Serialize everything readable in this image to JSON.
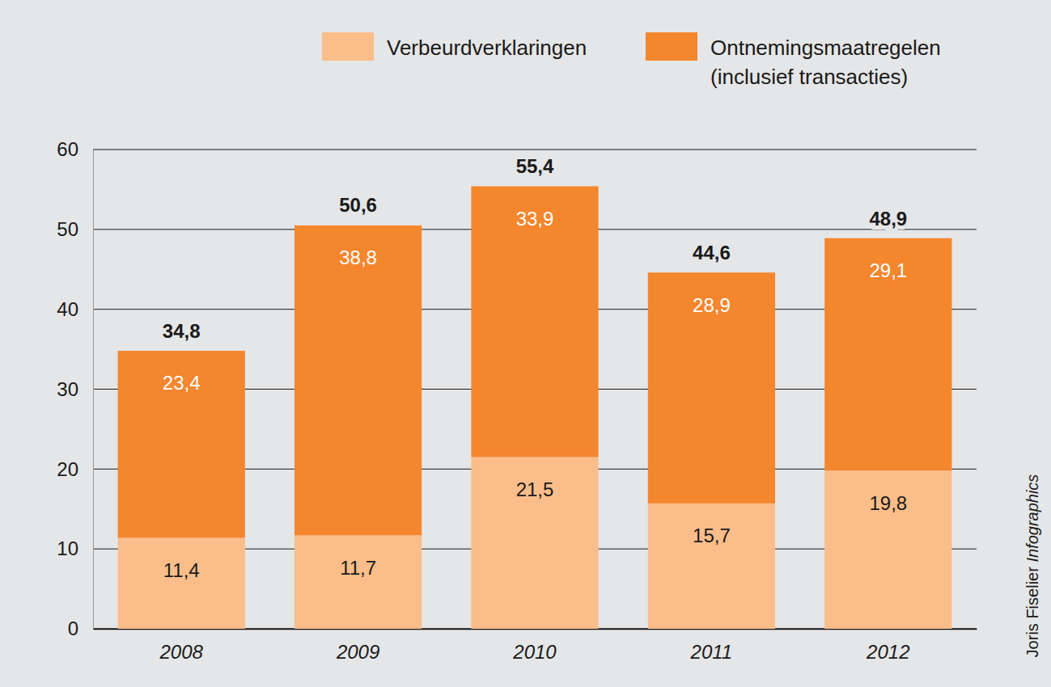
{
  "chart_data": {
    "type": "bar",
    "stacked": true,
    "grid": true,
    "data_labels": true,
    "categories": [
      "2008",
      "2009",
      "2010",
      "2011",
      "2012"
    ],
    "series": [
      {
        "name": "Verbeurdverklaringen",
        "color": "#fbbd8a",
        "values": [
          11.4,
          11.7,
          21.5,
          15.7,
          19.8
        ],
        "value_labels": [
          "11,4",
          "11,7",
          "21,5",
          "15,7",
          "19,8"
        ]
      },
      {
        "name": "Ontnemingsmaatregelen (inclusief transacties)",
        "color": "#f4862e",
        "values": [
          23.4,
          38.8,
          33.9,
          28.9,
          29.1
        ],
        "value_labels": [
          "23,4",
          "38,8",
          "33,9",
          "28,9",
          "29,1"
        ]
      }
    ],
    "totals": [
      34.8,
      50.6,
      55.4,
      44.6,
      48.9
    ],
    "total_labels": [
      "34,8",
      "50,6",
      "55,4",
      "44,6",
      "48,9"
    ],
    "ylim": [
      0,
      60
    ],
    "yticks": [
      0,
      10,
      20,
      30,
      40,
      50,
      60
    ],
    "source": "Joris Fiselier Infographics"
  }
}
